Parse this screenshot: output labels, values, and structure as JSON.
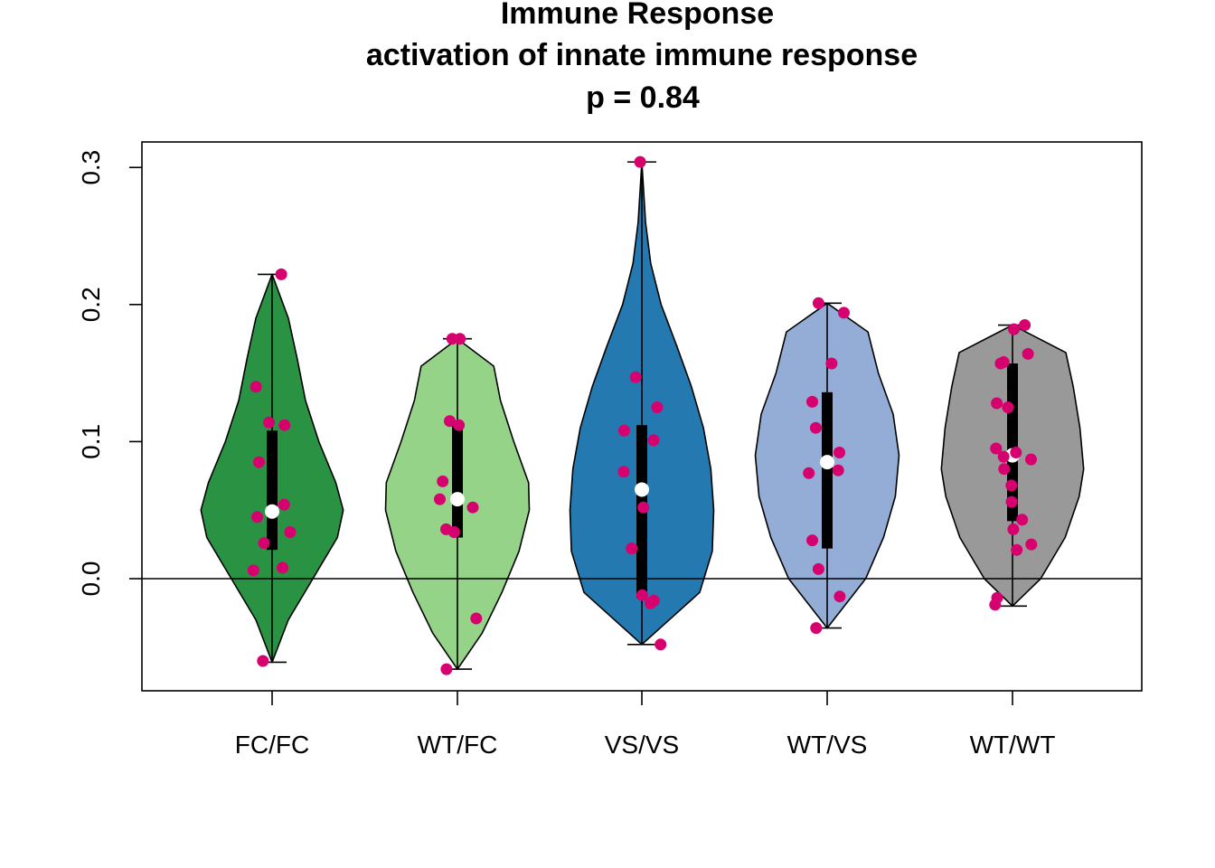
{
  "chart_data": {
    "type": "violin",
    "title_lines": [
      "Immune Response",
      "activation of innate immune response",
      "p = 0.84"
    ],
    "xlabel": "",
    "ylabel": "",
    "ylim": [
      -0.08,
      0.32
    ],
    "y_ticks": [
      0.0,
      0.1,
      0.2,
      0.3
    ],
    "y_tick_labels": [
      "0.0",
      "0.1",
      "0.2",
      "0.3"
    ],
    "reference_line_y": 0.0,
    "categories": [
      "FC/FC",
      "WT/FC",
      "VS/VS",
      "WT/VS",
      "WT/WT"
    ],
    "point_color": "#d6006f",
    "median_color": "#ffffff",
    "groups": [
      {
        "label": "FC/FC",
        "fill": "#2a9343",
        "min": -0.061,
        "max": 0.222,
        "q1": 0.021,
        "median": 0.049,
        "q3": 0.108,
        "width_profile": [
          [
            -0.061,
            0.0
          ],
          [
            -0.03,
            0.22
          ],
          [
            0.0,
            0.55
          ],
          [
            0.03,
            0.88
          ],
          [
            0.05,
            0.96
          ],
          [
            0.07,
            0.86
          ],
          [
            0.1,
            0.63
          ],
          [
            0.13,
            0.45
          ],
          [
            0.16,
            0.34
          ],
          [
            0.19,
            0.22
          ],
          [
            0.222,
            0.0
          ]
        ],
        "points": [
          0.222,
          0.14,
          0.114,
          0.112,
          0.085,
          0.054,
          0.045,
          0.034,
          0.026,
          0.008,
          0.006,
          -0.06
        ]
      },
      {
        "label": "WT/FC",
        "fill": "#94d388",
        "min": -0.066,
        "max": 0.175,
        "q1": 0.03,
        "median": 0.058,
        "q3": 0.113,
        "width_profile": [
          [
            -0.066,
            0.0
          ],
          [
            -0.04,
            0.33
          ],
          [
            -0.01,
            0.6
          ],
          [
            0.02,
            0.83
          ],
          [
            0.05,
            0.97
          ],
          [
            0.07,
            0.96
          ],
          [
            0.1,
            0.76
          ],
          [
            0.13,
            0.58
          ],
          [
            0.155,
            0.49
          ],
          [
            0.175,
            0.0
          ]
        ],
        "points": [
          0.175,
          0.175,
          0.115,
          0.112,
          0.071,
          0.058,
          0.052,
          0.036,
          0.034,
          -0.029,
          -0.066
        ]
      },
      {
        "label": "VS/VS",
        "fill": "#2479b0",
        "min": -0.048,
        "max": 0.304,
        "q1": -0.014,
        "median": 0.065,
        "q3": 0.112,
        "width_profile": [
          [
            -0.048,
            0.0
          ],
          [
            -0.01,
            0.78
          ],
          [
            0.02,
            0.95
          ],
          [
            0.05,
            0.97
          ],
          [
            0.08,
            0.93
          ],
          [
            0.11,
            0.83
          ],
          [
            0.14,
            0.67
          ],
          [
            0.17,
            0.47
          ],
          [
            0.2,
            0.26
          ],
          [
            0.23,
            0.12
          ],
          [
            0.26,
            0.05
          ],
          [
            0.304,
            0.0
          ]
        ],
        "points": [
          0.304,
          0.147,
          0.125,
          0.108,
          0.101,
          0.078,
          0.052,
          0.022,
          -0.012,
          -0.016,
          -0.018,
          -0.048
        ]
      },
      {
        "label": "WT/VS",
        "fill": "#94add6",
        "min": -0.036,
        "max": 0.201,
        "q1": 0.022,
        "median": 0.085,
        "q3": 0.136,
        "width_profile": [
          [
            -0.036,
            0.0
          ],
          [
            0.0,
            0.52
          ],
          [
            0.03,
            0.76
          ],
          [
            0.06,
            0.92
          ],
          [
            0.09,
            0.97
          ],
          [
            0.12,
            0.89
          ],
          [
            0.15,
            0.69
          ],
          [
            0.18,
            0.55
          ],
          [
            0.201,
            0.0
          ]
        ],
        "points": [
          0.201,
          0.194,
          0.157,
          0.129,
          0.11,
          0.092,
          0.079,
          0.077,
          0.028,
          0.007,
          -0.013,
          -0.036
        ]
      },
      {
        "label": "WT/WT",
        "fill": "#999999",
        "min": -0.02,
        "max": 0.185,
        "q1": 0.042,
        "median": 0.09,
        "q3": 0.157,
        "width_profile": [
          [
            -0.02,
            0.0
          ],
          [
            0.0,
            0.38
          ],
          [
            0.03,
            0.71
          ],
          [
            0.06,
            0.9
          ],
          [
            0.08,
            0.96
          ],
          [
            0.11,
            0.91
          ],
          [
            0.14,
            0.82
          ],
          [
            0.165,
            0.72
          ],
          [
            0.185,
            0.0
          ]
        ],
        "points": [
          0.185,
          0.182,
          0.164,
          0.158,
          0.157,
          0.128,
          0.125,
          0.095,
          0.092,
          0.089,
          0.087,
          0.08,
          0.068,
          0.056,
          0.043,
          0.036,
          0.025,
          0.021,
          -0.014,
          -0.019
        ]
      }
    ]
  }
}
